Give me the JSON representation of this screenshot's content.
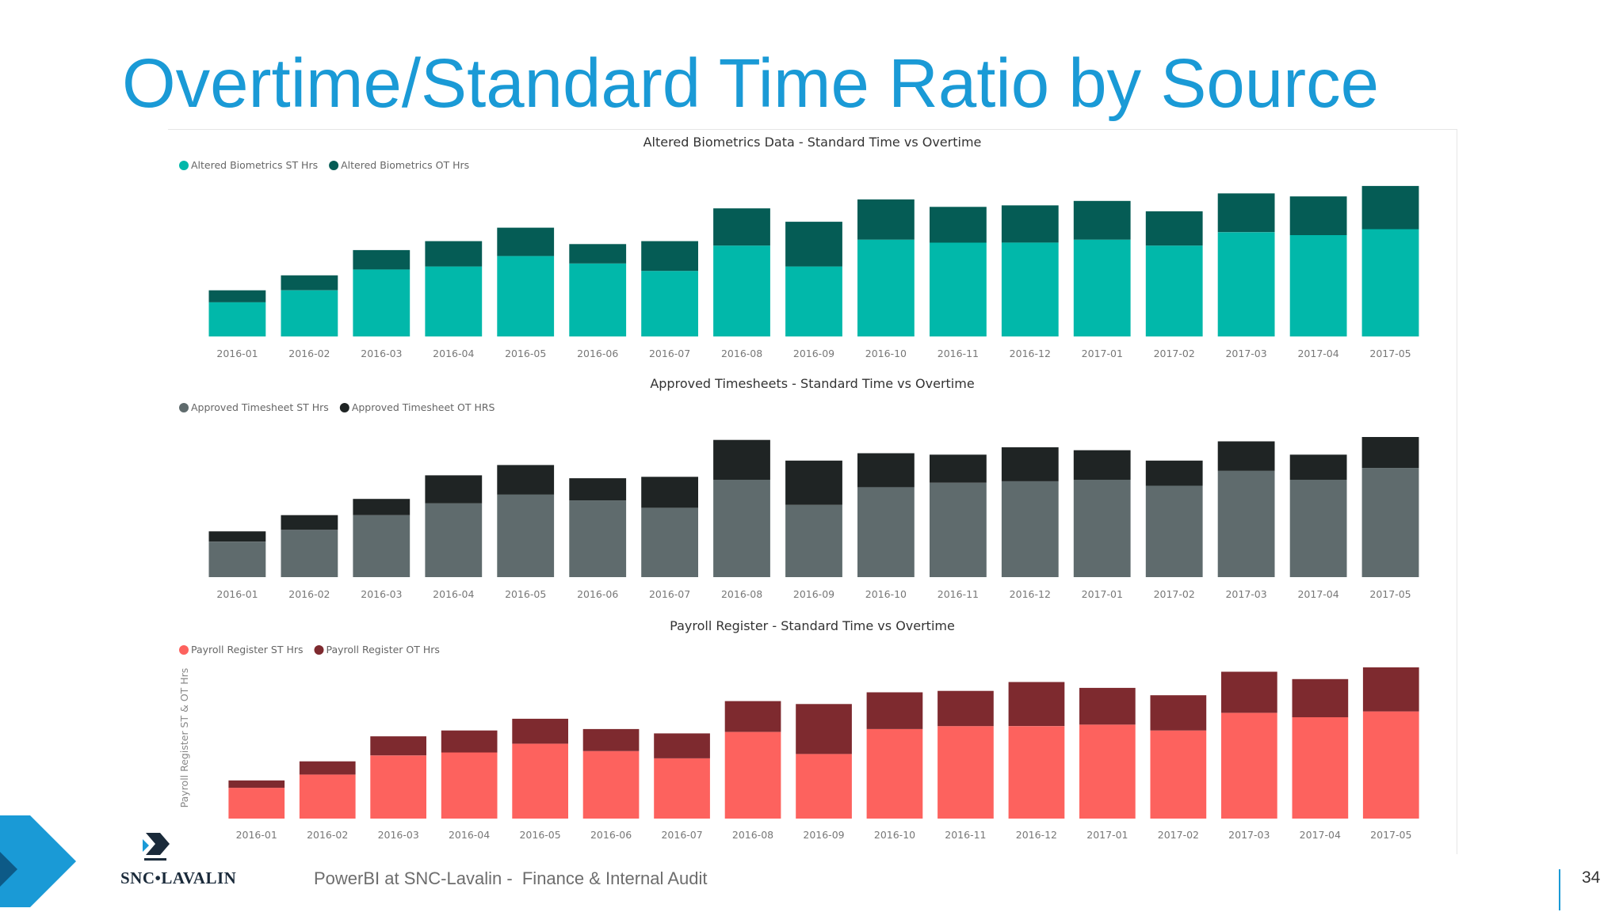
{
  "slide": {
    "title": "Overtime/Standard Time Ratio by Source",
    "footer": "PowerBI at SNC-Lavalin -  Finance & Internal Audit",
    "page_number": "34",
    "logo_text": "SNC•LAVALIN",
    "colors": {
      "title": "#1a9ad6",
      "accent": "#1a9ad6"
    }
  },
  "chart_data": [
    {
      "type": "bar",
      "stacked": true,
      "title": "Altered Biometrics Data - Standard Time vs Overtime",
      "xlabel": "",
      "ylabel": "",
      "categories": [
        "2016-01",
        "2016-02",
        "2016-03",
        "2016-04",
        "2016-05",
        "2016-06",
        "2016-07",
        "2016-08",
        "2016-09",
        "2016-10",
        "2016-11",
        "2016-12",
        "2017-01",
        "2017-02",
        "2017-03",
        "2017-04",
        "2017-05"
      ],
      "series": [
        {
          "name": "Altered Biometrics ST Hrs",
          "color": "#01b8aa",
          "values": [
            23,
            31,
            45,
            47,
            54,
            49,
            44,
            61,
            47,
            65,
            63,
            63,
            65,
            61,
            70,
            68,
            72
          ]
        },
        {
          "name": "Altered Biometrics OT Hrs",
          "color": "#055c55",
          "values": [
            8,
            10,
            13,
            17,
            19,
            13,
            20,
            25,
            30,
            27,
            24,
            25,
            26,
            23,
            26,
            26,
            29
          ]
        }
      ],
      "ylim": [
        0,
        110
      ],
      "legend_position": "top-left",
      "grid": false
    },
    {
      "type": "bar",
      "stacked": true,
      "title": "Approved Timesheets - Standard Time vs Overtime",
      "xlabel": "",
      "ylabel": "",
      "categories": [
        "2016-01",
        "2016-02",
        "2016-03",
        "2016-04",
        "2016-05",
        "2016-06",
        "2016-07",
        "2016-08",
        "2016-09",
        "2016-10",
        "2016-11",
        "2016-12",
        "2017-01",
        "2017-02",
        "2017-03",
        "2017-04",
        "2017-05"
      ],
      "series": [
        {
          "name": "Approved Timesheet ST Hrs",
          "color": "#5f6b6d",
          "values": [
            24,
            32,
            42,
            50,
            56,
            52,
            47,
            66,
            49,
            61,
            64,
            65,
            66,
            62,
            72,
            66,
            74
          ]
        },
        {
          "name": "Approved Timesheet OT HRS",
          "color": "#1f2424",
          "values": [
            7,
            10,
            11,
            19,
            20,
            15,
            21,
            27,
            30,
            23,
            19,
            23,
            20,
            17,
            20,
            17,
            21
          ]
        }
      ],
      "ylim": [
        0,
        110
      ],
      "legend_position": "top-left",
      "grid": false
    },
    {
      "type": "bar",
      "stacked": true,
      "title": "Payroll Register - Standard Time vs Overtime",
      "xlabel": "",
      "ylabel": "Payroll Register ST & OT Hrs",
      "categories": [
        "2016-01",
        "2016-02",
        "2016-03",
        "2016-04",
        "2016-05",
        "2016-06",
        "2016-07",
        "2016-08",
        "2016-09",
        "2016-10",
        "2016-11",
        "2016-12",
        "2017-01",
        "2017-02",
        "2017-03",
        "2017-04",
        "2017-05"
      ],
      "series": [
        {
          "name": "Payroll Register ST Hrs",
          "color": "#fd625e",
          "values": [
            21,
            30,
            43,
            45,
            51,
            46,
            41,
            59,
            44,
            61,
            63,
            63,
            64,
            60,
            72,
            69,
            73
          ]
        },
        {
          "name": "Payroll Register OT Hrs",
          "color": "#7e2a2f",
          "values": [
            5,
            9,
            13,
            15,
            17,
            15,
            17,
            21,
            34,
            25,
            24,
            30,
            25,
            24,
            28,
            26,
            30
          ]
        }
      ],
      "ylim": [
        0,
        110
      ],
      "legend_position": "top-left",
      "grid": false
    }
  ]
}
